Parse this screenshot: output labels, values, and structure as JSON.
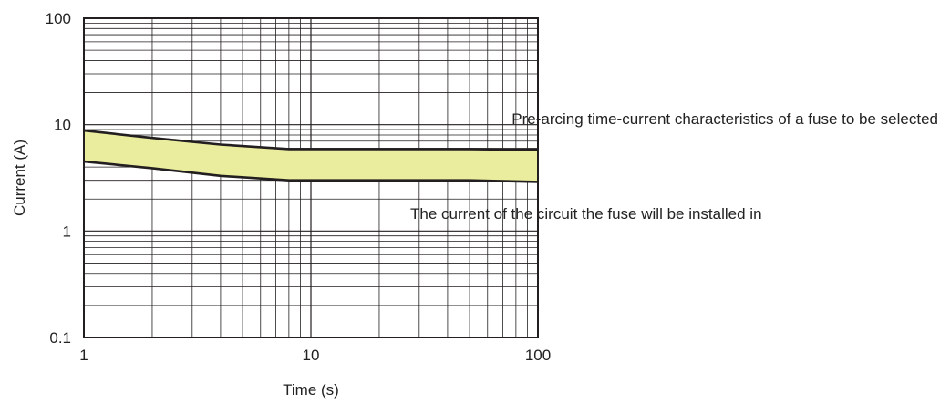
{
  "chart_data": {
    "type": "area",
    "xlabel": "Time (s)",
    "ylabel": "Current (A)",
    "x_scale": "log",
    "y_scale": "log",
    "xlim": [
      1,
      100
    ],
    "ylim": [
      0.1,
      100
    ],
    "x_ticks": [
      "1",
      "10",
      "100"
    ],
    "y_ticks": [
      "0.1",
      "1",
      "10",
      "100"
    ],
    "grid": true,
    "series": [
      {
        "name": "Pre-arcing time-current characteristics of a fuse to be selected",
        "x": [
          1,
          2,
          4,
          8,
          20,
          50,
          100
        ],
        "y": [
          8.8,
          7.5,
          6.5,
          5.9,
          5.9,
          5.9,
          5.8
        ]
      },
      {
        "name": "The current of the circuit the fuse will be installed in",
        "x": [
          1,
          2,
          4,
          8,
          20,
          50,
          100
        ],
        "y": [
          4.5,
          3.9,
          3.3,
          3.0,
          3.0,
          3.0,
          2.9
        ]
      }
    ],
    "band_color": "#eaed9e",
    "line_color": "#231f20"
  }
}
